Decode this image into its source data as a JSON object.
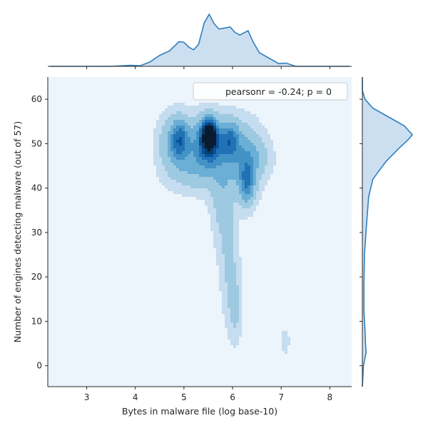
{
  "chart_data": {
    "type": "kde-jointplot",
    "xlabel": "Bytes in malware file (log base-10)",
    "ylabel": "Number of engines detecting malware (out of 57)",
    "xlim": [
      2.2,
      8.45
    ],
    "ylim": [
      -4.7,
      65
    ],
    "xticks": [
      3,
      4,
      5,
      6,
      7,
      8
    ],
    "yticks": [
      0,
      10,
      20,
      30,
      40,
      50,
      60
    ],
    "annotation": "pearsonr = -0.24; p = 0",
    "grid": false,
    "legend_position": "top-right",
    "colors": {
      "line": "#2f7ebc",
      "fill": "#c6dbef",
      "background": "#ecf4fc",
      "levels": [
        "#ecf4fc",
        "#c6dcef",
        "#9ecae1",
        "#6baed6",
        "#4292c6",
        "#2171b5",
        "#08519c",
        "#0b3d6b",
        "#0b1b2f"
      ]
    },
    "density_peaks": [
      {
        "x": 5.52,
        "y": 52,
        "weight": 1.0
      },
      {
        "x": 4.9,
        "y": 51,
        "weight": 0.6
      },
      {
        "x": 5.95,
        "y": 51,
        "weight": 0.5
      },
      {
        "x": 6.3,
        "y": 41,
        "weight": 0.5
      },
      {
        "x": 5.3,
        "y": 48,
        "weight": 0.4
      },
      {
        "x": 5.75,
        "y": 37,
        "weight": 0.25
      },
      {
        "x": 5.95,
        "y": 22,
        "weight": 0.15
      },
      {
        "x": 6.05,
        "y": 11,
        "weight": 0.15
      },
      {
        "x": 7.08,
        "y": 5.5,
        "weight": 0.1
      }
    ],
    "x_marginal": {
      "x": [
        2.25,
        3.5,
        3.9,
        4.1,
        4.3,
        4.5,
        4.7,
        4.9,
        5.0,
        5.1,
        5.2,
        5.3,
        5.42,
        5.52,
        5.62,
        5.72,
        5.85,
        5.95,
        6.05,
        6.15,
        6.25,
        6.32,
        6.42,
        6.55,
        6.75,
        6.95,
        7.1,
        7.3,
        8.4
      ],
      "density": [
        0.0,
        0.0,
        0.02,
        0.01,
        0.08,
        0.2,
        0.28,
        0.45,
        0.44,
        0.35,
        0.3,
        0.4,
        0.8,
        0.95,
        0.78,
        0.68,
        0.7,
        0.72,
        0.62,
        0.57,
        0.62,
        0.65,
        0.45,
        0.25,
        0.15,
        0.05,
        0.06,
        0.0,
        0.0
      ]
    },
    "y_marginal": {
      "y": [
        -4.7,
        0,
        3,
        5,
        8,
        12,
        18,
        25,
        32,
        38,
        42,
        46,
        49,
        51,
        52,
        54,
        56,
        58,
        60,
        62,
        65
      ],
      "density": [
        0.0,
        0.02,
        0.07,
        0.06,
        0.05,
        0.03,
        0.03,
        0.04,
        0.08,
        0.12,
        0.2,
        0.45,
        0.7,
        0.88,
        0.95,
        0.8,
        0.5,
        0.2,
        0.05,
        0.0,
        0.0
      ]
    }
  }
}
